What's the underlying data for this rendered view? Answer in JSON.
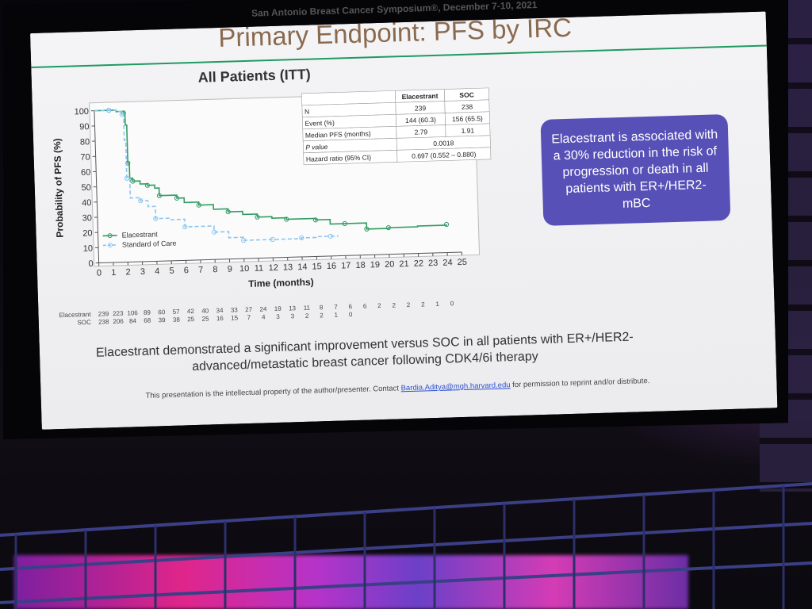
{
  "slide": {
    "conference": "San Antonio Breast Cancer Symposium®, December 7-10, 2021",
    "title": "Primary Endpoint: PFS by IRC",
    "subtitle": "All Patients (ITT)",
    "callout": "Elacestrant is associated with a 30% reduction in the risk of progression or death in all patients with ER+/HER2- mBC",
    "conclusion": "Elacestrant demonstrated a significant improvement versus SOC in all patients with ER+/HER2- advanced/metastatic breast cancer following CDK4/6i therapy",
    "footer_prefix": "This presentation is the intellectual property of the author/presenter. Contact ",
    "footer_email": "Bardia.Aditya@mgh.harvard.edu",
    "footer_suffix": " for permission to reprint and/or distribute."
  },
  "stats_table": {
    "headers": [
      "",
      "Elacestrant",
      "SOC"
    ],
    "rows": [
      [
        "N",
        "239",
        "238"
      ],
      [
        "Event (%)",
        "144 (60.3)",
        "156 (65.5)"
      ],
      [
        "Median PFS (months)",
        "2.79",
        "1.91"
      ],
      [
        "P value",
        "0.0018",
        ""
      ],
      [
        "Hazard ratio (95% CI)",
        "0.697 (0.552 – 0.880)",
        ""
      ]
    ]
  },
  "at_risk": {
    "rows": [
      {
        "label": "Elacestrant",
        "values": [
          "239",
          "223",
          "106",
          "89",
          "60",
          "57",
          "42",
          "40",
          "34",
          "33",
          "27",
          "24",
          "19",
          "13",
          "11",
          "8",
          "7",
          "6",
          "6",
          "2",
          "2",
          "2",
          "2",
          "1",
          "0"
        ]
      },
      {
        "label": "SOC",
        "values": [
          "238",
          "206",
          "84",
          "68",
          "39",
          "38",
          "25",
          "25",
          "16",
          "15",
          "7",
          "4",
          "3",
          "3",
          "2",
          "2",
          "1",
          "0"
        ]
      }
    ]
  },
  "chart_data": {
    "type": "line",
    "xlabel": "Time (months)",
    "ylabel": "Probability of PFS (%)",
    "xlim": [
      0,
      25
    ],
    "ylim": [
      0,
      100
    ],
    "xticks": [
      0,
      1,
      2,
      3,
      4,
      5,
      6,
      7,
      8,
      9,
      10,
      11,
      12,
      13,
      14,
      15,
      16,
      17,
      18,
      19,
      20,
      21,
      22,
      23,
      24,
      25
    ],
    "yticks": [
      0,
      10,
      20,
      30,
      40,
      50,
      60,
      70,
      80,
      90,
      100
    ],
    "legend": "bottom-left",
    "series": [
      {
        "name": "Elacestrant",
        "color": "#2f9d63",
        "x": [
          0,
          1,
          1.5,
          2,
          2.1,
          2.2,
          2.3,
          2.5,
          3,
          3.5,
          4,
          4.3,
          5,
          5.5,
          6,
          7,
          8,
          9,
          10,
          11,
          12,
          13,
          14,
          15,
          16,
          17,
          18,
          18.5,
          19,
          20,
          22,
          24
        ],
        "y": [
          100,
          100,
          99,
          98,
          90,
          65,
          55,
          53,
          51,
          50,
          48,
          43,
          43,
          41,
          38,
          36,
          33,
          31,
          29,
          27,
          26,
          25,
          25,
          24,
          21,
          21,
          21,
          17,
          17,
          17.5,
          18,
          18.5
        ]
      },
      {
        "name": "Standard of Care",
        "color": "#8cc6ee",
        "x": [
          0,
          1,
          1.5,
          1.9,
          2.0,
          2.1,
          2.3,
          3,
          3.5,
          4,
          5,
          6,
          7,
          8,
          9,
          10,
          11,
          12,
          13,
          14,
          15,
          16,
          16.5
        ],
        "y": [
          100,
          100,
          99,
          97,
          80,
          55,
          42,
          40,
          36,
          28,
          27,
          22,
          22,
          18,
          14,
          12,
          12,
          12,
          12,
          12.5,
          13,
          13,
          13.5
        ]
      }
    ]
  }
}
